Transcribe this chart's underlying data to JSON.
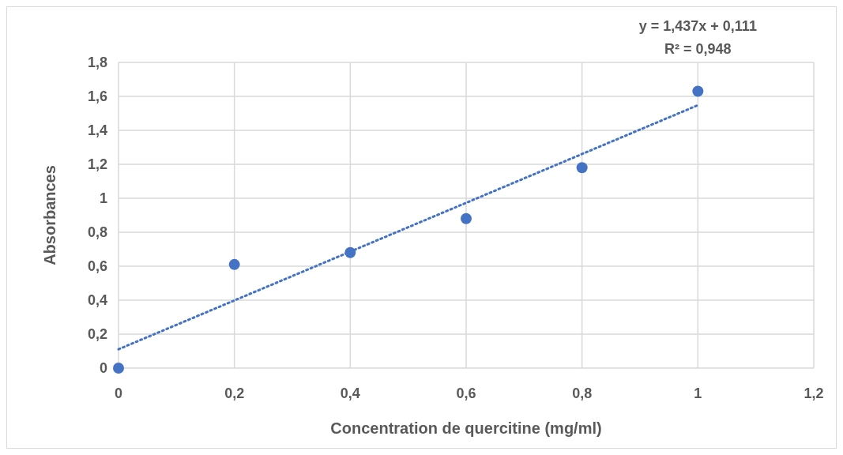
{
  "chart_data": {
    "type": "scatter",
    "xlabel": "Concentration de quercitine (mg/ml)",
    "ylabel": "Absorbances",
    "x": [
      0,
      0.2,
      0.4,
      0.6,
      0.8,
      1
    ],
    "series": [
      {
        "color": "#4472c4",
        "marker": "circle",
        "values": [
          0,
          0.61,
          0.68,
          0.88,
          1.18,
          1.63
        ]
      },
      {
        "type": "line",
        "color": "#4472c4",
        "line_style": "dotted",
        "marker": "none",
        "x": [
          0,
          1
        ],
        "values": [
          0.111,
          1.548
        ]
      }
    ],
    "xlim": [
      0,
      1.2
    ],
    "xticks": [
      0,
      {
        "value": 0.2,
        "label": "0,2"
      },
      {
        "value": 0.4,
        "label": "0,4"
      },
      {
        "value": 0.6,
        "label": "0,6"
      },
      {
        "value": 0.8,
        "label": "0,8"
      },
      1,
      {
        "value": 1.2,
        "label": "1,2"
      }
    ],
    "ylim": [
      0,
      1.8
    ],
    "yticks": [
      0,
      {
        "value": 0.2,
        "label": "0,2"
      },
      {
        "value": 0.4,
        "label": "0,4"
      },
      {
        "value": 0.6,
        "label": "0,6"
      },
      {
        "value": 0.8,
        "label": "0,8"
      },
      1,
      {
        "value": 1.2,
        "label": "1,2"
      },
      {
        "value": 1.4,
        "label": "1,4"
      },
      {
        "value": 1.6,
        "label": "1,6"
      },
      {
        "value": 1.8,
        "label": "1,8"
      }
    ],
    "grid": true,
    "annotations": [
      "y = 1,437x + 0,111",
      "R² = 0,948"
    ]
  }
}
